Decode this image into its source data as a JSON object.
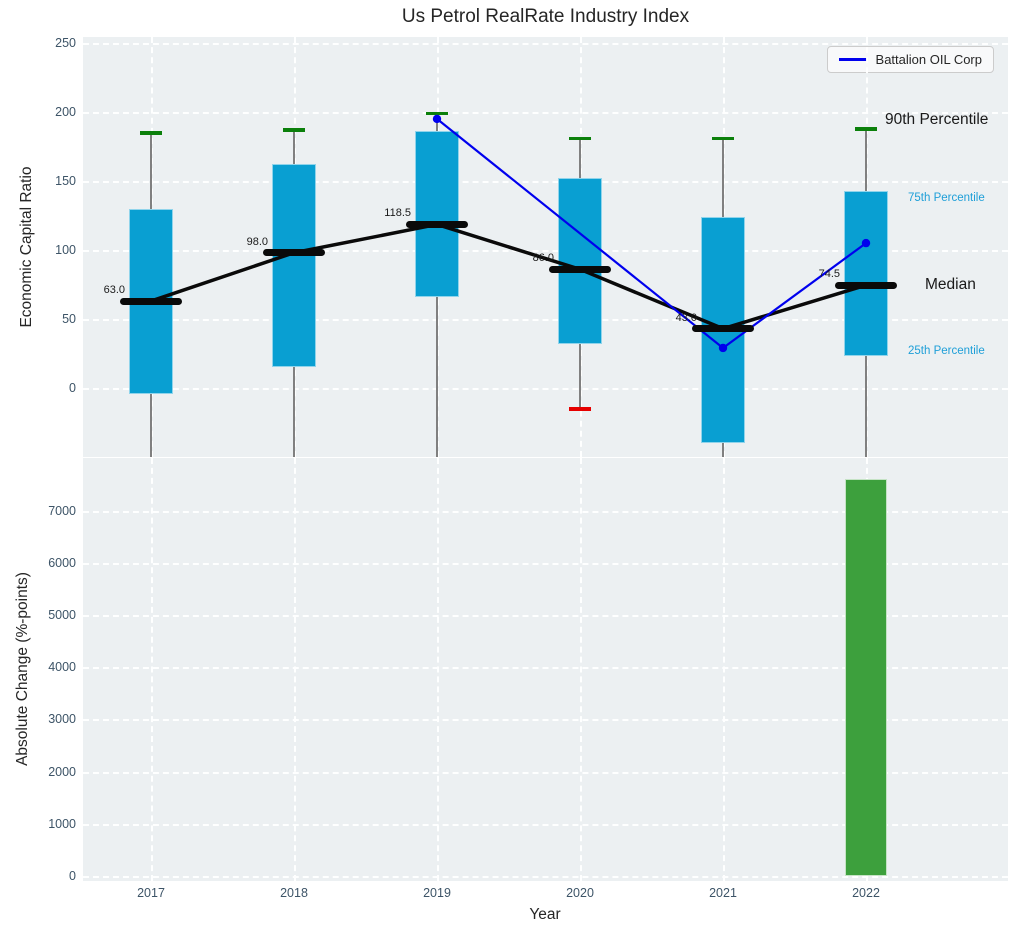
{
  "title": "Us Petrol RealRate Industry Index",
  "colors": {
    "plot_bg": "#ecf0f2",
    "box_fill": "#099fd2",
    "median_line": "#0a0a0a",
    "p90_cap": "#0b800b",
    "p10_cap": "#e60000",
    "company_line": "#0000ee",
    "bar_fill": "#3da03d",
    "whisker": "#808080",
    "tick_text": "#3d5467",
    "percentile_text": "#1e9fd8",
    "label_text": "#1a1a1a"
  },
  "legend": {
    "label": "Battalion OIL Corp"
  },
  "axes": {
    "top": {
      "ylabel": "Economic Capital Ratio",
      "yticks": [
        0,
        50,
        100,
        150,
        200,
        250
      ]
    },
    "bottom": {
      "ylabel": "Absolute Change (%-points)",
      "yticks": [
        0,
        1000,
        2000,
        3000,
        4000,
        5000,
        6000,
        7000
      ],
      "xlabel": "Year"
    }
  },
  "annotations": [
    {
      "label": "90th Percentile",
      "value": 194,
      "color": "#1a1a1a",
      "size": 15.5,
      "x": 802
    },
    {
      "label": "75th Percentile",
      "value": 138,
      "color": "#1e9fd8",
      "size": 11.5,
      "x": 825
    },
    {
      "label": "Median",
      "value": 75,
      "color": "#1a1a1a",
      "size": 15.5,
      "x": 842
    },
    {
      "label": "25th Percentile",
      "value": 27,
      "color": "#1e9fd8",
      "size": 11.5,
      "x": 825
    }
  ],
  "chart_data": [
    {
      "type": "box",
      "title": "Us Petrol RealRate Industry Index",
      "xlabel": "Year",
      "ylabel": "Economic Capital Ratio",
      "ylim": [
        -50,
        254
      ],
      "grid": true,
      "legend_position": "upper right",
      "categories": [
        "2017",
        "2018",
        "2019",
        "2020",
        "2021",
        "2022"
      ],
      "boxes": [
        {
          "category": "2017",
          "p10": null,
          "p25": -4,
          "median": 63.0,
          "p75": 130,
          "p90": 185,
          "median_label": "63.0"
        },
        {
          "category": "2018",
          "p10": null,
          "p25": 15,
          "median": 98.0,
          "p75": 162,
          "p90": 187,
          "median_label": "98.0"
        },
        {
          "category": "2019",
          "p10": null,
          "p25": 66,
          "median": 118.5,
          "p75": 186,
          "p90": 199,
          "median_label": "118.5"
        },
        {
          "category": "2020",
          "p10": -15,
          "p25": 32,
          "median": 86.0,
          "p75": 152,
          "p90": 181,
          "median_label": "86.0"
        },
        {
          "category": "2021",
          "p10": null,
          "p25": -40,
          "median": 43.0,
          "p75": 124,
          "p90": 181,
          "median_label": "43.0"
        },
        {
          "category": "2022",
          "p10": null,
          "p25": 23,
          "median": 74.5,
          "p75": 143,
          "p90": 188,
          "median_label": "74.5"
        }
      ],
      "median_series": [
        63.0,
        98.0,
        118.5,
        86.0,
        43.0,
        74.5
      ],
      "series": [
        {
          "name": "Battalion OIL Corp",
          "points": [
            {
              "category": "2019",
              "value": 195
            },
            {
              "category": "2021",
              "value": 29
            },
            {
              "category": "2022",
              "value": 105
            }
          ]
        }
      ]
    },
    {
      "type": "bar",
      "xlabel": "Year",
      "ylabel": "Absolute Change (%-points)",
      "ylim": [
        -100,
        8000
      ],
      "grid": true,
      "categories": [
        "2017",
        "2018",
        "2019",
        "2020",
        "2021",
        "2022"
      ],
      "values": [
        null,
        null,
        null,
        null,
        null,
        7600
      ]
    }
  ]
}
